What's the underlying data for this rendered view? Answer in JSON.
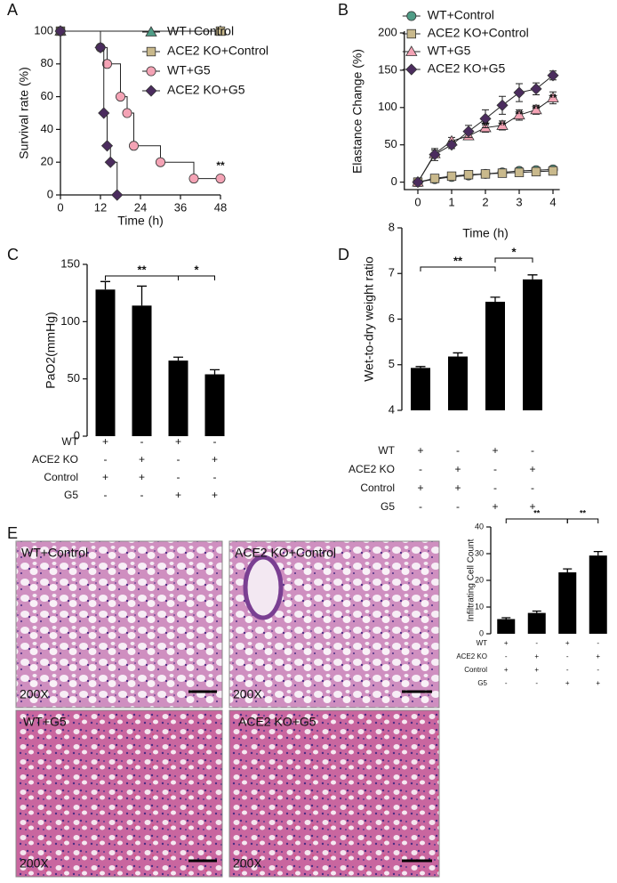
{
  "chart_data": [
    {
      "panel": "A",
      "type": "step",
      "y_label": "Survival rate (%)",
      "x_label": "Time (h)",
      "xlim": [
        0,
        48
      ],
      "xticks": [
        0,
        12,
        24,
        36,
        48
      ],
      "ylim": [
        0,
        100
      ],
      "yticks": [
        0,
        20,
        40,
        60,
        80,
        100
      ],
      "legend": "upper right",
      "series": [
        {
          "name": "WT+Control",
          "color": "#4f9c86",
          "marker": "triangle",
          "x": [
            0,
            48
          ],
          "values": [
            100,
            100
          ]
        },
        {
          "name": "ACE2 KO+Control",
          "color": "#c9b98c",
          "marker": "square",
          "x": [
            0,
            48
          ],
          "values": [
            100,
            100
          ]
        },
        {
          "name": "WT+G5",
          "color": "#f4a3b5",
          "marker": "circle",
          "x": [
            0,
            12,
            14,
            18,
            20,
            22,
            30,
            40,
            48
          ],
          "values": [
            100,
            90,
            80,
            60,
            50,
            30,
            20,
            10,
            10
          ]
        },
        {
          "name": "ACE2 KO+G5",
          "color": "#4b2c5e",
          "marker": "diamond",
          "x": [
            0,
            12,
            13,
            14,
            15,
            17
          ],
          "values": [
            100,
            90,
            50,
            30,
            20,
            0
          ]
        }
      ],
      "annotations": [
        {
          "text": "**",
          "x": 48,
          "y": 10
        }
      ]
    },
    {
      "panel": "B",
      "type": "line",
      "y_label": "Elastance Change (%)",
      "x_label": "Time (h)",
      "xlim": [
        -0.4,
        4.2
      ],
      "xticks": [
        0,
        1,
        2,
        3,
        4
      ],
      "ylim": [
        -10,
        200
      ],
      "yticks": [
        0,
        50,
        100,
        150,
        200
      ],
      "legend": "upper left",
      "x": [
        0,
        0.5,
        1,
        1.5,
        2,
        2.5,
        3,
        3.5,
        4
      ],
      "series": [
        {
          "name": "WT+Control",
          "color": "#4f9c86",
          "marker": "circle",
          "values": [
            0,
            4,
            7,
            9,
            11,
            13,
            15,
            16,
            17
          ],
          "errors": [
            1,
            2,
            2,
            2,
            2,
            3,
            3,
            3,
            3
          ]
        },
        {
          "name": "ACE2 KO+Control",
          "color": "#c9b98c",
          "marker": "square",
          "values": [
            0,
            5,
            8,
            10,
            11,
            12,
            13,
            14,
            15
          ],
          "errors": [
            1,
            2,
            2,
            2,
            2,
            2,
            3,
            3,
            3
          ]
        },
        {
          "name": "WT+G5",
          "color": "#f4a3b5",
          "marker": "triangle",
          "values": [
            0,
            38,
            55,
            62,
            73,
            76,
            90,
            97,
            113
          ],
          "errors": [
            2,
            5,
            5,
            5,
            6,
            6,
            7,
            6,
            8
          ]
        },
        {
          "name": "ACE2 KO+G5",
          "color": "#4b2c5e",
          "marker": "diamond",
          "values": [
            0,
            37,
            50,
            68,
            85,
            103,
            120,
            125,
            143
          ],
          "errors": [
            2,
            8,
            5,
            8,
            12,
            12,
            12,
            8,
            6
          ]
        }
      ],
      "annotations": [
        {
          "text": "**",
          "x": 2,
          "y": 58
        },
        {
          "text": "**",
          "x": 2.5,
          "y": 58
        },
        {
          "text": "**",
          "x": 3,
          "y": 73
        },
        {
          "text": "**",
          "x": 3.5,
          "y": 80
        },
        {
          "text": "**",
          "x": 4,
          "y": 95
        }
      ]
    },
    {
      "panel": "C",
      "type": "bar",
      "y_label": "PaO2(mmHg)",
      "categories": [
        null,
        null,
        null,
        null
      ],
      "values": [
        128,
        114,
        66,
        54
      ],
      "errors": [
        7,
        17,
        3,
        4
      ],
      "color": "#000000",
      "ylim": [
        0,
        150
      ],
      "yticks": [
        0,
        50,
        100,
        150
      ],
      "conditions": [
        {
          "label": "WT",
          "signs": [
            "+",
            "-",
            "+",
            "-"
          ]
        },
        {
          "label": "ACE2 KO",
          "signs": [
            "-",
            "+",
            "-",
            "+"
          ]
        },
        {
          "label": "Control",
          "signs": [
            "+",
            "+",
            "-",
            "-"
          ]
        },
        {
          "label": "G5",
          "signs": [
            "-",
            "-",
            "+",
            "+"
          ]
        }
      ],
      "significance": [
        {
          "from": 0,
          "to": 2,
          "text": "**"
        },
        {
          "from": 2,
          "to": 3,
          "text": "*"
        }
      ]
    },
    {
      "panel": "D",
      "type": "bar",
      "y_label": "Wet-to-dry weight ratio",
      "categories": [
        null,
        null,
        null,
        null
      ],
      "values": [
        4.93,
        5.18,
        6.38,
        6.87
      ],
      "errors": [
        0.03,
        0.08,
        0.1,
        0.1
      ],
      "color": "#000000",
      "ylim": [
        4,
        8
      ],
      "yticks": [
        4,
        5,
        6,
        7,
        8
      ],
      "conditions": [
        {
          "label": "WT",
          "signs": [
            "+",
            "-",
            "+",
            "-"
          ]
        },
        {
          "label": "ACE2 KO",
          "signs": [
            "-",
            "+",
            "-",
            "+"
          ]
        },
        {
          "label": "Control",
          "signs": [
            "+",
            "+",
            "-",
            "-"
          ]
        },
        {
          "label": "G5",
          "signs": [
            "-",
            "-",
            "+",
            "+"
          ]
        }
      ],
      "significance": [
        {
          "from": 0,
          "to": 2,
          "text": "**"
        },
        {
          "from": 2,
          "to": 3,
          "text": "*"
        }
      ]
    },
    {
      "panel": "E",
      "type": "bar",
      "y_label": "Infiltrating Cell Count",
      "categories": [
        null,
        null,
        null,
        null
      ],
      "values": [
        5.5,
        7.8,
        23,
        29.3
      ],
      "errors": [
        0.5,
        0.7,
        1.3,
        1.5
      ],
      "color": "#000000",
      "ylim": [
        0,
        40
      ],
      "yticks": [
        0,
        10,
        20,
        30,
        40
      ],
      "conditions": [
        {
          "label": "WT",
          "signs": [
            "+",
            "-",
            "+",
            "-"
          ]
        },
        {
          "label": "ACE2 KO",
          "signs": [
            "-",
            "+",
            "-",
            "+"
          ]
        },
        {
          "label": "Control",
          "signs": [
            "+",
            "+",
            "-",
            "-"
          ]
        },
        {
          "label": "G5",
          "signs": [
            "-",
            "-",
            "+",
            "+"
          ]
        }
      ],
      "significance": [
        {
          "from": 0,
          "to": 2,
          "text": "**"
        },
        {
          "from": 2,
          "to": 3,
          "text": "**"
        }
      ]
    }
  ],
  "panel_e_images": [
    {
      "label": "WT+Control",
      "magnification": "200X"
    },
    {
      "label": "ACE2 KO+Control",
      "magnification": "200X"
    },
    {
      "label": "WT+G5",
      "magnification": "200X"
    },
    {
      "label": "ACE2 KO+G5",
      "magnification": "200X"
    }
  ]
}
